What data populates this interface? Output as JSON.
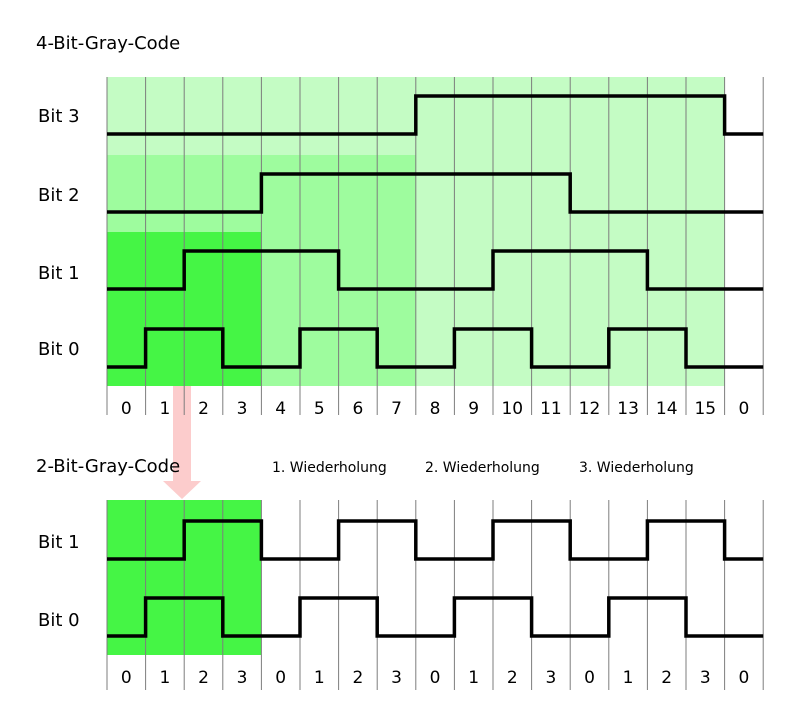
{
  "colors": {
    "light_green": "#c4fcc4",
    "mid_green": "#9efc9e",
    "bright_green": "#45f545",
    "arrow_pink": "#fccccc",
    "signal": "#000000",
    "grid": "#7d7d7d"
  },
  "diagram_4bit": {
    "title": "4-Bit-Gray-Code",
    "bits": [
      {
        "label": "Bit 3",
        "levels": [
          0,
          0,
          0,
          0,
          0,
          0,
          0,
          0,
          1,
          1,
          1,
          1,
          1,
          1,
          1,
          1,
          0
        ]
      },
      {
        "label": "Bit 2",
        "levels": [
          0,
          0,
          0,
          0,
          1,
          1,
          1,
          1,
          1,
          1,
          1,
          1,
          0,
          0,
          0,
          0,
          0
        ]
      },
      {
        "label": "Bit 1",
        "levels": [
          0,
          0,
          1,
          1,
          1,
          1,
          0,
          0,
          0,
          0,
          1,
          1,
          1,
          1,
          0,
          0,
          0
        ]
      },
      {
        "label": "Bit 0",
        "levels": [
          0,
          1,
          1,
          0,
          0,
          1,
          1,
          0,
          0,
          1,
          1,
          0,
          0,
          1,
          1,
          0,
          0
        ]
      }
    ],
    "ticks": [
      "0",
      "1",
      "2",
      "3",
      "4",
      "5",
      "6",
      "7",
      "8",
      "9",
      "10",
      "11",
      "12",
      "13",
      "14",
      "15",
      "0"
    ]
  },
  "diagram_2bit": {
    "title": "2-Bit-Gray-Code",
    "repetitions": [
      "1. Wiederholung",
      "2. Wiederholung",
      "3. Wiederholung"
    ],
    "bits": [
      {
        "label": "Bit 1",
        "levels": [
          0,
          0,
          1,
          1,
          0,
          0,
          1,
          1,
          0,
          0,
          1,
          1,
          0,
          0,
          1,
          1,
          0
        ]
      },
      {
        "label": "Bit 0",
        "levels": [
          0,
          1,
          1,
          0,
          0,
          1,
          1,
          0,
          0,
          1,
          1,
          0,
          0,
          1,
          1,
          0,
          0
        ]
      }
    ],
    "ticks": [
      "0",
      "1",
      "2",
      "3",
      "0",
      "1",
      "2",
      "3",
      "0",
      "1",
      "2",
      "3",
      "0",
      "1",
      "2",
      "3",
      "0"
    ]
  }
}
